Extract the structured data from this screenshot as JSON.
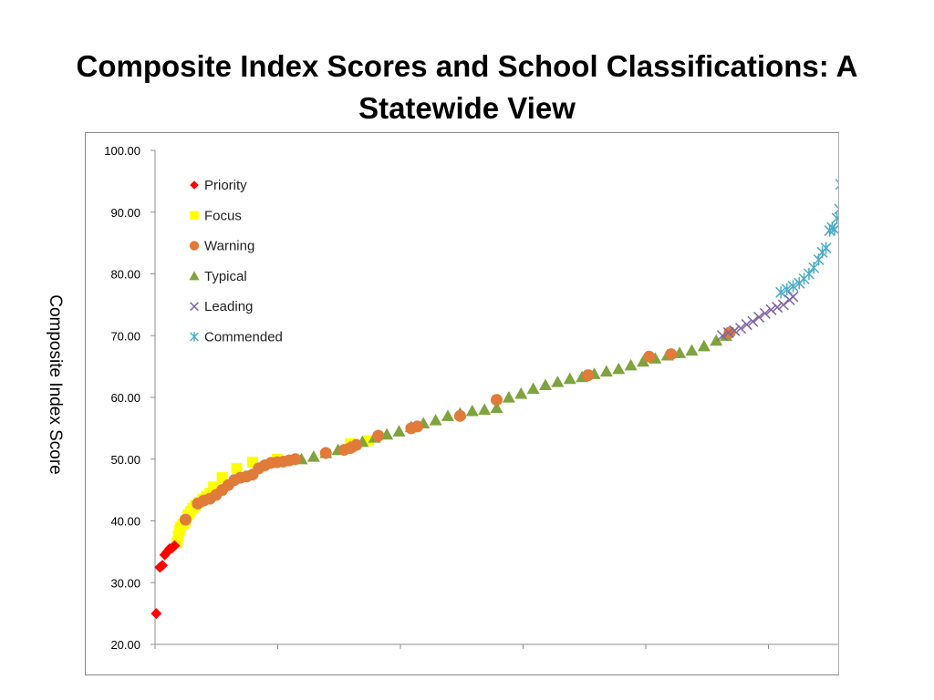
{
  "title": "Composite Index Scores and School Classifications: A Statewide View",
  "chart_data": {
    "type": "scatter",
    "title": "Composite Index Scores and School Classifications: A Statewide View",
    "ylabel": "Composite Index Score",
    "xlabel": "",
    "ylim": [
      20,
      100
    ],
    "yticks": [
      "20.00",
      "30.00",
      "40.00",
      "50.00",
      "60.00",
      "70.00",
      "80.00",
      "90.00",
      "100.00"
    ],
    "x_tick_count": 6,
    "x_tick_labels_shown": false,
    "x_range_approx": [
      0,
      560
    ],
    "legend_position": "top-left",
    "grid": false,
    "series": [
      {
        "name": "Priority",
        "color": "#ff0000",
        "marker": "diamond",
        "points": [
          [
            1,
            25
          ],
          [
            4,
            32.5
          ],
          [
            6,
            32.8
          ],
          [
            8,
            34.5
          ],
          [
            10,
            35
          ],
          [
            12,
            35.5
          ],
          [
            14,
            35.6
          ],
          [
            16,
            36
          ]
        ]
      },
      {
        "name": "Focus",
        "color": "#ffff00",
        "marker": "square",
        "points": [
          [
            18,
            36.5
          ],
          [
            19,
            37.5
          ],
          [
            20,
            38.5
          ],
          [
            21,
            39
          ],
          [
            23,
            39.5
          ],
          [
            25,
            40
          ],
          [
            27,
            41
          ],
          [
            29,
            41.5
          ],
          [
            31,
            42
          ],
          [
            33,
            42.5
          ],
          [
            36,
            43
          ],
          [
            39,
            43.5
          ],
          [
            42,
            44
          ],
          [
            45,
            44.5
          ],
          [
            48,
            45.5
          ],
          [
            55,
            47
          ],
          [
            67,
            48.5
          ],
          [
            80,
            49.5
          ],
          [
            100,
            50
          ],
          [
            160,
            52.5
          ],
          [
            175,
            53
          ]
        ]
      },
      {
        "name": "Warning",
        "color": "#e07b39",
        "marker": "circle",
        "points": [
          [
            25,
            40.2
          ],
          [
            35,
            42.8
          ],
          [
            40,
            43.3
          ],
          [
            45,
            43.6
          ],
          [
            50,
            44.2
          ],
          [
            55,
            45
          ],
          [
            60,
            45.8
          ],
          [
            65,
            46.6
          ],
          [
            70,
            47
          ],
          [
            75,
            47.2
          ],
          [
            80,
            47.5
          ],
          [
            85,
            48.5
          ],
          [
            90,
            49
          ],
          [
            95,
            49.4
          ],
          [
            100,
            49.5
          ],
          [
            105,
            49.6
          ],
          [
            110,
            49.8
          ],
          [
            115,
            50
          ],
          [
            140,
            51
          ],
          [
            155,
            51.5
          ],
          [
            160,
            51.8
          ],
          [
            165,
            52.3
          ],
          [
            183,
            53.8
          ],
          [
            210,
            55
          ],
          [
            215,
            55.3
          ],
          [
            250,
            57
          ],
          [
            280,
            59.6
          ],
          [
            355,
            63.6
          ],
          [
            405,
            66.6
          ],
          [
            423,
            67
          ],
          [
            471,
            70.5
          ]
        ]
      },
      {
        "name": "Typical",
        "color": "#7fa33e",
        "marker": "triangle",
        "points": [
          [
            120,
            50
          ],
          [
            130,
            50.4
          ],
          [
            140,
            51
          ],
          [
            150,
            51.5
          ],
          [
            160,
            52
          ],
          [
            170,
            52.8
          ],
          [
            180,
            53.5
          ],
          [
            190,
            54
          ],
          [
            200,
            54.5
          ],
          [
            210,
            55.2
          ],
          [
            220,
            55.8
          ],
          [
            230,
            56.3
          ],
          [
            240,
            57
          ],
          [
            250,
            57.4
          ],
          [
            260,
            57.8
          ],
          [
            270,
            58
          ],
          [
            280,
            58.3
          ],
          [
            290,
            60
          ],
          [
            300,
            60.6
          ],
          [
            310,
            61.4
          ],
          [
            320,
            62
          ],
          [
            330,
            62.5
          ],
          [
            340,
            63
          ],
          [
            350,
            63.3
          ],
          [
            360,
            63.8
          ],
          [
            370,
            64.2
          ],
          [
            380,
            64.6
          ],
          [
            390,
            65.2
          ],
          [
            400,
            65.8
          ],
          [
            410,
            66.3
          ],
          [
            420,
            66.8
          ],
          [
            430,
            67.2
          ],
          [
            440,
            67.6
          ],
          [
            450,
            68.3
          ],
          [
            460,
            69.2
          ],
          [
            468,
            70
          ]
        ]
      },
      {
        "name": "Leading",
        "color": "#8064a2",
        "marker": "x",
        "points": [
          [
            465,
            70
          ],
          [
            470,
            70.5
          ],
          [
            475,
            70.8
          ],
          [
            480,
            71.2
          ],
          [
            485,
            71.8
          ],
          [
            490,
            72.3
          ],
          [
            495,
            73
          ],
          [
            500,
            73.6
          ],
          [
            505,
            74.2
          ],
          [
            510,
            74.6
          ],
          [
            515,
            75
          ],
          [
            520,
            75.8
          ],
          [
            523,
            76.3
          ]
        ]
      },
      {
        "name": "Commended",
        "color": "#4bacc6",
        "marker": "asterisk",
        "points": [
          [
            513,
            77
          ],
          [
            518,
            77.5
          ],
          [
            523,
            78
          ],
          [
            528,
            78.5
          ],
          [
            532,
            79.2
          ],
          [
            536,
            80
          ],
          [
            540,
            81
          ],
          [
            544,
            82.3
          ],
          [
            547,
            83.5
          ],
          [
            550,
            84.2
          ],
          [
            553,
            87
          ],
          [
            555,
            87.5
          ],
          [
            557,
            87.2
          ],
          [
            559,
            89
          ],
          [
            561,
            90.5
          ],
          [
            562,
            94.5
          ]
        ]
      }
    ]
  }
}
